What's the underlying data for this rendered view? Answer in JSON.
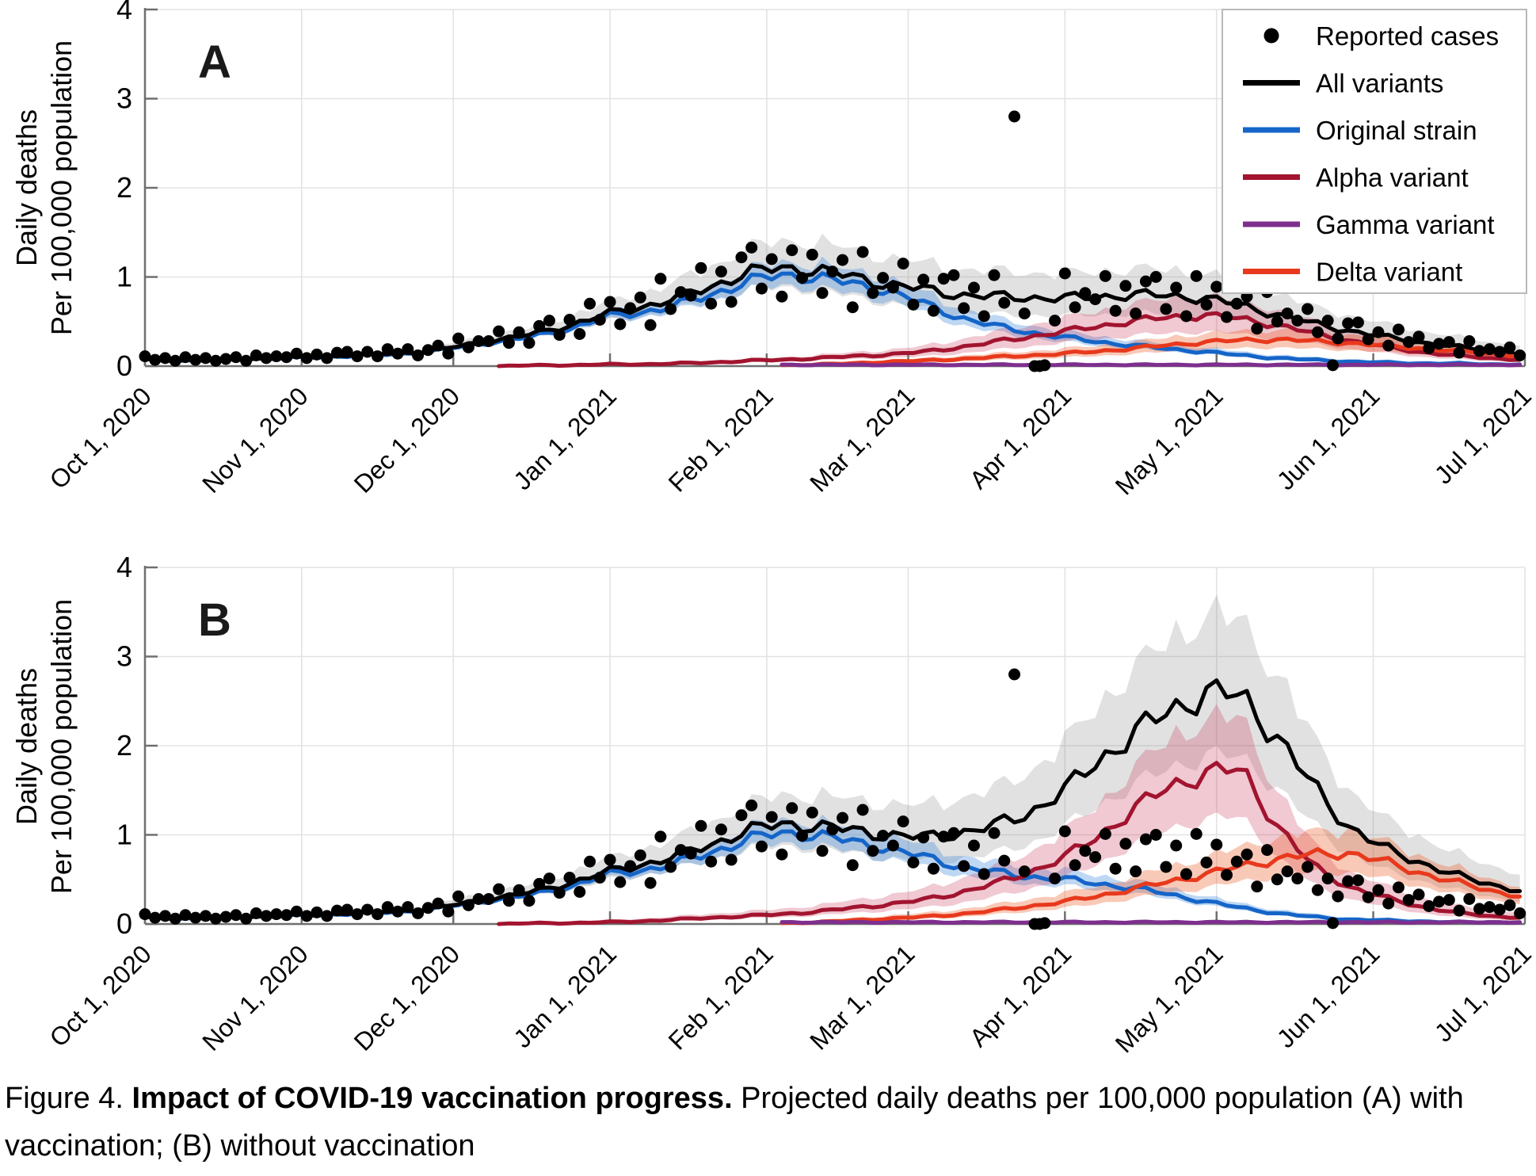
{
  "figure": {
    "caption_prefix": "Figure 4. ",
    "caption_bold": "Impact of COVID-19 vaccination progress.",
    "caption_rest": " Projected daily deaths per 100,000 population (A) with vaccination; (B) without vaccination"
  },
  "axes": {
    "ylabel_line1": "Daily deaths",
    "ylabel_line2": "Per 100,000 population",
    "ylim": [
      0,
      4
    ],
    "yticks": [
      0,
      1,
      2,
      3,
      4
    ],
    "x_range_days": 273,
    "x_tick_days": [
      0,
      31,
      61,
      92,
      123,
      151,
      182,
      212,
      243,
      273
    ],
    "x_tick_labels": [
      "Oct 1, 2020",
      "Nov 1, 2020",
      "Dec 1, 2020",
      "Jan 1, 2021",
      "Feb 1, 2021",
      "Mar 1, 2021",
      "Apr 1, 2021",
      "May 1, 2021",
      "Jun 1, 2021",
      "Jul 1, 2021"
    ],
    "grid": true
  },
  "colors": {
    "all_variants": "#000000",
    "original_strain": "#1565C8",
    "alpha_variant": "#A2142F",
    "gamma_variant": "#7E2F8E",
    "delta_variant": "#E8391D",
    "grid": "#e3e3e3",
    "axis": "#6f6f6f",
    "band_gray": "rgba(130,130,130,0.24)",
    "band_blue": "rgba(70,140,220,0.35)",
    "band_pink": "rgba(200,55,90,0.27)",
    "band_orange": "rgba(238,90,40,0.33)"
  },
  "legend": [
    {
      "label": "Reported cases",
      "marker": "dot",
      "color": "#000000"
    },
    {
      "label": "All variants",
      "marker": "line",
      "color": "#000000"
    },
    {
      "label": "Original strain",
      "marker": "line",
      "color": "#1565C8"
    },
    {
      "label": "Alpha variant",
      "marker": "line",
      "color": "#A2142F"
    },
    {
      "label": "Gamma variant",
      "marker": "line",
      "color": "#7E2F8E"
    },
    {
      "label": "Delta variant",
      "marker": "line",
      "color": "#E8391D"
    }
  ],
  "reported_cases": {
    "name": "Reported cases",
    "color": "#000000",
    "points": [
      [
        0,
        0.11
      ],
      [
        2,
        0.07
      ],
      [
        4,
        0.09
      ],
      [
        6,
        0.06
      ],
      [
        8,
        0.1
      ],
      [
        10,
        0.07
      ],
      [
        12,
        0.09
      ],
      [
        14,
        0.06
      ],
      [
        16,
        0.08
      ],
      [
        18,
        0.1
      ],
      [
        20,
        0.06
      ],
      [
        22,
        0.12
      ],
      [
        24,
        0.09
      ],
      [
        26,
        0.11
      ],
      [
        28,
        0.1
      ],
      [
        30,
        0.14
      ],
      [
        32,
        0.09
      ],
      [
        34,
        0.13
      ],
      [
        36,
        0.09
      ],
      [
        38,
        0.15
      ],
      [
        40,
        0.16
      ],
      [
        42,
        0.11
      ],
      [
        44,
        0.16
      ],
      [
        46,
        0.11
      ],
      [
        48,
        0.19
      ],
      [
        50,
        0.14
      ],
      [
        52,
        0.19
      ],
      [
        54,
        0.12
      ],
      [
        56,
        0.18
      ],
      [
        58,
        0.23
      ],
      [
        60,
        0.14
      ],
      [
        62,
        0.31
      ],
      [
        64,
        0.21
      ],
      [
        66,
        0.28
      ],
      [
        68,
        0.28
      ],
      [
        70,
        0.39
      ],
      [
        72,
        0.26
      ],
      [
        74,
        0.38
      ],
      [
        76,
        0.26
      ],
      [
        78,
        0.45
      ],
      [
        80,
        0.51
      ],
      [
        82,
        0.35
      ],
      [
        84,
        0.52
      ],
      [
        86,
        0.36
      ],
      [
        88,
        0.7
      ],
      [
        90,
        0.52
      ],
      [
        92,
        0.72
      ],
      [
        94,
        0.47
      ],
      [
        96,
        0.65
      ],
      [
        98,
        0.77
      ],
      [
        100,
        0.46
      ],
      [
        102,
        0.98
      ],
      [
        104,
        0.64
      ],
      [
        106,
        0.83
      ],
      [
        108,
        0.79
      ],
      [
        110,
        1.1
      ],
      [
        112,
        0.7
      ],
      [
        114,
        1.06
      ],
      [
        116,
        0.72
      ],
      [
        118,
        1.22
      ],
      [
        120,
        1.33
      ],
      [
        122,
        0.87
      ],
      [
        124,
        1.2
      ],
      [
        126,
        0.78
      ],
      [
        128,
        1.3
      ],
      [
        130,
        0.99
      ],
      [
        132,
        1.25
      ],
      [
        134,
        0.82
      ],
      [
        136,
        1.06
      ],
      [
        138,
        1.19
      ],
      [
        140,
        0.66
      ],
      [
        142,
        1.28
      ],
      [
        144,
        0.82
      ],
      [
        146,
        0.99
      ],
      [
        148,
        0.88
      ],
      [
        150,
        1.15
      ],
      [
        152,
        0.69
      ],
      [
        154,
        0.97
      ],
      [
        156,
        0.62
      ],
      [
        158,
        0.98
      ],
      [
        160,
        1.02
      ],
      [
        162,
        0.65
      ],
      [
        164,
        0.88
      ],
      [
        166,
        0.56
      ],
      [
        168,
        1.02
      ],
      [
        170,
        0.71
      ],
      [
        172,
        2.8
      ],
      [
        174,
        0.59
      ],
      [
        176,
        0.0
      ],
      [
        177,
        0.0
      ],
      [
        178,
        0.01
      ],
      [
        180,
        0.51
      ],
      [
        182,
        1.04
      ],
      [
        184,
        0.66
      ],
      [
        186,
        0.82
      ],
      [
        188,
        0.75
      ],
      [
        190,
        1.01
      ],
      [
        192,
        0.62
      ],
      [
        194,
        0.9
      ],
      [
        196,
        0.59
      ],
      [
        198,
        0.95
      ],
      [
        200,
        1.0
      ],
      [
        202,
        0.64
      ],
      [
        204,
        0.88
      ],
      [
        206,
        0.56
      ],
      [
        208,
        1.01
      ],
      [
        210,
        0.69
      ],
      [
        212,
        0.89
      ],
      [
        214,
        0.55
      ],
      [
        216,
        0.7
      ],
      [
        218,
        0.78
      ],
      [
        220,
        0.42
      ],
      [
        222,
        0.83
      ],
      [
        224,
        0.5
      ],
      [
        226,
        0.59
      ],
      [
        228,
        0.51
      ],
      [
        230,
        0.64
      ],
      [
        232,
        0.38
      ],
      [
        234,
        0.51
      ],
      [
        235,
        0.01
      ],
      [
        236,
        0.31
      ],
      [
        238,
        0.48
      ],
      [
        240,
        0.49
      ],
      [
        242,
        0.3
      ],
      [
        244,
        0.38
      ],
      [
        246,
        0.23
      ],
      [
        248,
        0.41
      ],
      [
        250,
        0.27
      ],
      [
        252,
        0.33
      ],
      [
        254,
        0.2
      ],
      [
        256,
        0.25
      ],
      [
        258,
        0.27
      ],
      [
        260,
        0.15
      ],
      [
        262,
        0.28
      ],
      [
        264,
        0.17
      ],
      [
        266,
        0.19
      ],
      [
        268,
        0.16
      ],
      [
        270,
        0.21
      ],
      [
        272,
        0.12
      ]
    ]
  },
  "chart_data": [
    {
      "type": "line",
      "panel": "A",
      "panel_label": "A",
      "subtitle": "with vaccination",
      "week_step_days": 7,
      "ylim": [
        0,
        4
      ],
      "series": [
        {
          "name": "All variants",
          "color": "#000000",
          "band_color": "rgba(130,130,130,0.24)",
          "band": [
            0.24,
            0.3,
            0.05
          ],
          "values": [
            0.08,
            0.07,
            0.07,
            0.08,
            0.1,
            0.11,
            0.13,
            0.14,
            0.17,
            0.23,
            0.3,
            0.36,
            0.46,
            0.58,
            0.66,
            0.76,
            0.89,
            1.05,
            1.1,
            1.08,
            1.0,
            0.92,
            0.86,
            0.8,
            0.78,
            0.77,
            0.76,
            0.78,
            0.8,
            0.79,
            0.76,
            0.68,
            0.58,
            0.48,
            0.4,
            0.33,
            0.27,
            0.22,
            0.17,
            0.14
          ]
        },
        {
          "name": "Original strain",
          "color": "#1565C8",
          "band_color": "rgba(70,140,220,0.35)",
          "band": [
            0.14,
            0.16,
            0.02
          ],
          "values": [
            0.07,
            0.06,
            0.07,
            0.08,
            0.09,
            0.1,
            0.12,
            0.13,
            0.16,
            0.22,
            0.28,
            0.33,
            0.42,
            0.55,
            0.6,
            0.68,
            0.8,
            0.95,
            1.02,
            1.0,
            0.92,
            0.85,
            0.7,
            0.55,
            0.45,
            0.38,
            0.32,
            0.27,
            0.23,
            0.19,
            0.16,
            0.12,
            0.09,
            0.07,
            0.05,
            0.04,
            0.03,
            0.03,
            0.02,
            0.02
          ]
        },
        {
          "name": "Alpha variant",
          "color": "#A2142F",
          "band_color": "rgba(200,55,90,0.27)",
          "band": [
            0.32,
            0.36,
            0.01
          ],
          "values": [
            null,
            null,
            null,
            null,
            null,
            null,
            null,
            null,
            null,
            null,
            0.0,
            0.01,
            0.01,
            0.02,
            0.02,
            0.03,
            0.04,
            0.06,
            0.07,
            0.09,
            0.11,
            0.13,
            0.16,
            0.21,
            0.27,
            0.33,
            0.39,
            0.45,
            0.51,
            0.55,
            0.57,
            0.53,
            0.46,
            0.37,
            0.29,
            0.22,
            0.16,
            0.12,
            0.09,
            0.07
          ]
        },
        {
          "name": "Delta variant",
          "color": "#E8391D",
          "band_color": "rgba(238,90,40,0.33)",
          "band": [
            0.3,
            0.32,
            0.01
          ],
          "values": [
            null,
            null,
            null,
            null,
            null,
            null,
            null,
            null,
            null,
            null,
            null,
            null,
            null,
            null,
            null,
            null,
            null,
            null,
            0.01,
            0.02,
            0.03,
            0.05,
            0.06,
            0.08,
            0.1,
            0.12,
            0.14,
            0.17,
            0.2,
            0.24,
            0.27,
            0.29,
            0.3,
            0.28,
            0.26,
            0.23,
            0.2,
            0.17,
            0.14,
            0.11
          ]
        },
        {
          "name": "Gamma variant",
          "color": "#7E2F8E",
          "band_color": null,
          "band": null,
          "values": [
            null,
            null,
            null,
            null,
            null,
            null,
            null,
            null,
            null,
            null,
            null,
            null,
            null,
            null,
            null,
            null,
            null,
            null,
            0.015,
            0.015,
            0.015,
            0.015,
            0.015,
            0.015,
            0.015,
            0.015,
            0.015,
            0.015,
            0.015,
            0.015,
            0.015,
            0.015,
            0.015,
            0.015,
            0.015,
            0.015,
            0.015,
            0.015,
            0.015,
            0.015
          ]
        }
      ]
    },
    {
      "type": "line",
      "panel": "B",
      "panel_label": "B",
      "subtitle": "without vaccination",
      "week_step_days": 7,
      "ylim": [
        0,
        4
      ],
      "series": [
        {
          "name": "All variants",
          "color": "#000000",
          "band_color": "rgba(130,130,130,0.24)",
          "band": [
            0.26,
            0.3,
            0.08
          ],
          "values": [
            0.08,
            0.07,
            0.07,
            0.08,
            0.1,
            0.11,
            0.13,
            0.14,
            0.17,
            0.23,
            0.3,
            0.36,
            0.46,
            0.58,
            0.66,
            0.76,
            0.89,
            1.05,
            1.12,
            1.1,
            1.05,
            1.0,
            0.97,
            1.02,
            1.1,
            1.25,
            1.5,
            1.85,
            2.15,
            2.4,
            2.6,
            2.55,
            2.1,
            1.55,
            1.1,
            0.85,
            0.7,
            0.55,
            0.45,
            0.36
          ]
        },
        {
          "name": "Original strain",
          "color": "#1565C8",
          "band_color": "rgba(70,140,220,0.35)",
          "band": [
            0.14,
            0.16,
            0.02
          ],
          "values": [
            0.07,
            0.06,
            0.07,
            0.08,
            0.09,
            0.1,
            0.12,
            0.13,
            0.16,
            0.22,
            0.28,
            0.33,
            0.42,
            0.55,
            0.6,
            0.68,
            0.8,
            0.95,
            1.02,
            1.0,
            0.92,
            0.85,
            0.75,
            0.65,
            0.58,
            0.53,
            0.5,
            0.45,
            0.4,
            0.33,
            0.25,
            0.18,
            0.12,
            0.08,
            0.05,
            0.04,
            0.03,
            0.02,
            0.02,
            0.02
          ]
        },
        {
          "name": "Alpha variant",
          "color": "#A2142F",
          "band_color": "rgba(200,55,90,0.27)",
          "band": [
            0.3,
            0.32,
            0.04
          ],
          "values": [
            null,
            null,
            null,
            null,
            null,
            null,
            null,
            null,
            null,
            null,
            0.0,
            0.01,
            0.01,
            0.02,
            0.03,
            0.05,
            0.07,
            0.09,
            0.11,
            0.14,
            0.18,
            0.22,
            0.27,
            0.35,
            0.45,
            0.58,
            0.75,
            1.0,
            1.3,
            1.55,
            1.7,
            1.73,
            1.1,
            0.65,
            0.42,
            0.3,
            0.2,
            0.13,
            0.09,
            0.07
          ]
        },
        {
          "name": "Delta variant",
          "color": "#E8391D",
          "band_color": "rgba(238,90,40,0.33)",
          "band": [
            0.26,
            0.3,
            0.02
          ],
          "values": [
            null,
            null,
            null,
            null,
            null,
            null,
            null,
            null,
            null,
            null,
            null,
            null,
            null,
            null,
            null,
            null,
            null,
            null,
            0.01,
            0.02,
            0.04,
            0.06,
            0.08,
            0.11,
            0.15,
            0.2,
            0.25,
            0.32,
            0.4,
            0.48,
            0.56,
            0.65,
            0.73,
            0.78,
            0.8,
            0.7,
            0.58,
            0.47,
            0.38,
            0.3
          ]
        },
        {
          "name": "Gamma variant",
          "color": "#7E2F8E",
          "band_color": null,
          "band": null,
          "values": [
            null,
            null,
            null,
            null,
            null,
            null,
            null,
            null,
            null,
            null,
            null,
            null,
            null,
            null,
            null,
            null,
            null,
            null,
            0.02,
            0.02,
            0.02,
            0.02,
            0.02,
            0.02,
            0.02,
            0.02,
            0.02,
            0.02,
            0.02,
            0.02,
            0.02,
            0.02,
            0.02,
            0.02,
            0.02,
            0.02,
            0.02,
            0.02,
            0.02,
            0.02
          ]
        }
      ]
    }
  ]
}
